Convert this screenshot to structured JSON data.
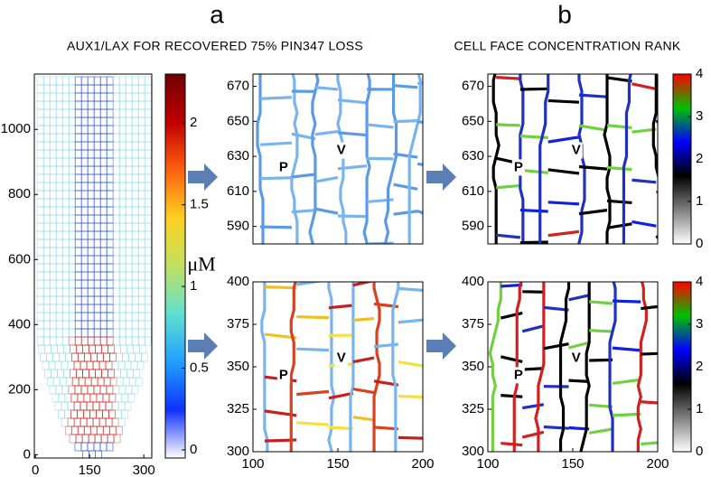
{
  "labels": {
    "panel_a": "a",
    "panel_b": "b",
    "title_a": "AUX1/LAX FOR RECOVERED 75% PIN347 LOSS",
    "title_b": "CELL FACE CONCENTRATION RANK"
  },
  "chart_data": [
    {
      "type": "image",
      "xlim": [
        -3,
        322
      ],
      "ylim": [
        -10,
        1170
      ],
      "xticks": [
        0,
        150,
        300
      ],
      "yticks": [
        0,
        200,
        400,
        600,
        800,
        1000
      ],
      "wall_colors": [
        "#2f55d8",
        "#6fd0e0",
        "#d42020"
      ],
      "colorbar": {
        "lim": [
          -0.05,
          2.3
        ],
        "ticks": [
          0,
          0.5,
          1,
          1.5,
          2
        ],
        "label": "μM",
        "colormap": [
          "#ffffff",
          "#1030ff",
          "#20a0ff",
          "#60e0d0",
          "#c0e060",
          "#ffd020",
          "#ff6010",
          "#c00000",
          "#700000"
        ]
      }
    },
    {
      "type": "image",
      "xlim": [
        100,
        200
      ],
      "ylim": [
        580,
        677
      ],
      "yticks": [
        590,
        610,
        630,
        650,
        670
      ],
      "annotations": [
        "P",
        "V"
      ],
      "wall_colors": [
        "#78b4f0",
        "#5a9ae6"
      ]
    },
    {
      "type": "image",
      "xlim": [
        100,
        200
      ],
      "ylim": [
        300,
        400
      ],
      "xticks": [
        100,
        150,
        200
      ],
      "yticks": [
        300,
        325,
        350,
        375,
        400
      ],
      "annotations": [
        "P",
        "V"
      ],
      "wall_colors": [
        "#c81e1e",
        "#f0c020",
        "#f5e040",
        "#78b4f0",
        "#d84020"
      ]
    },
    {
      "type": "image",
      "xlim": [
        100,
        200
      ],
      "ylim": [
        580,
        677
      ],
      "yticks": [
        590,
        610,
        630,
        650,
        670
      ],
      "annotations": [
        "P",
        "V"
      ],
      "wall_colors": [
        "#000000",
        "#1020e0",
        "#000000",
        "#2030c0",
        "#d02020",
        "#70d040"
      ],
      "colorbar": {
        "lim": [
          0,
          4
        ],
        "ticks": [
          0,
          1,
          2,
          3,
          4
        ],
        "colormap": [
          "#ffffff",
          "#808080",
          "#000000",
          "#0000ff",
          "#00c000",
          "#ff0000"
        ]
      }
    },
    {
      "type": "image",
      "xlim": [
        100,
        200
      ],
      "ylim": [
        300,
        400
      ],
      "xticks": [
        100,
        150,
        200
      ],
      "yticks": [
        300,
        325,
        350,
        375,
        400
      ],
      "annotations": [
        "P",
        "V"
      ],
      "wall_colors": [
        "#000000",
        "#1020e0",
        "#000000",
        "#2030c0",
        "#d02020",
        "#70d040"
      ],
      "colorbar": {
        "lim": [
          0,
          4
        ],
        "ticks": [
          0,
          1,
          2,
          3,
          4
        ],
        "colormap": [
          "#ffffff",
          "#808080",
          "#000000",
          "#0000ff",
          "#00c000",
          "#ff0000"
        ]
      }
    }
  ]
}
